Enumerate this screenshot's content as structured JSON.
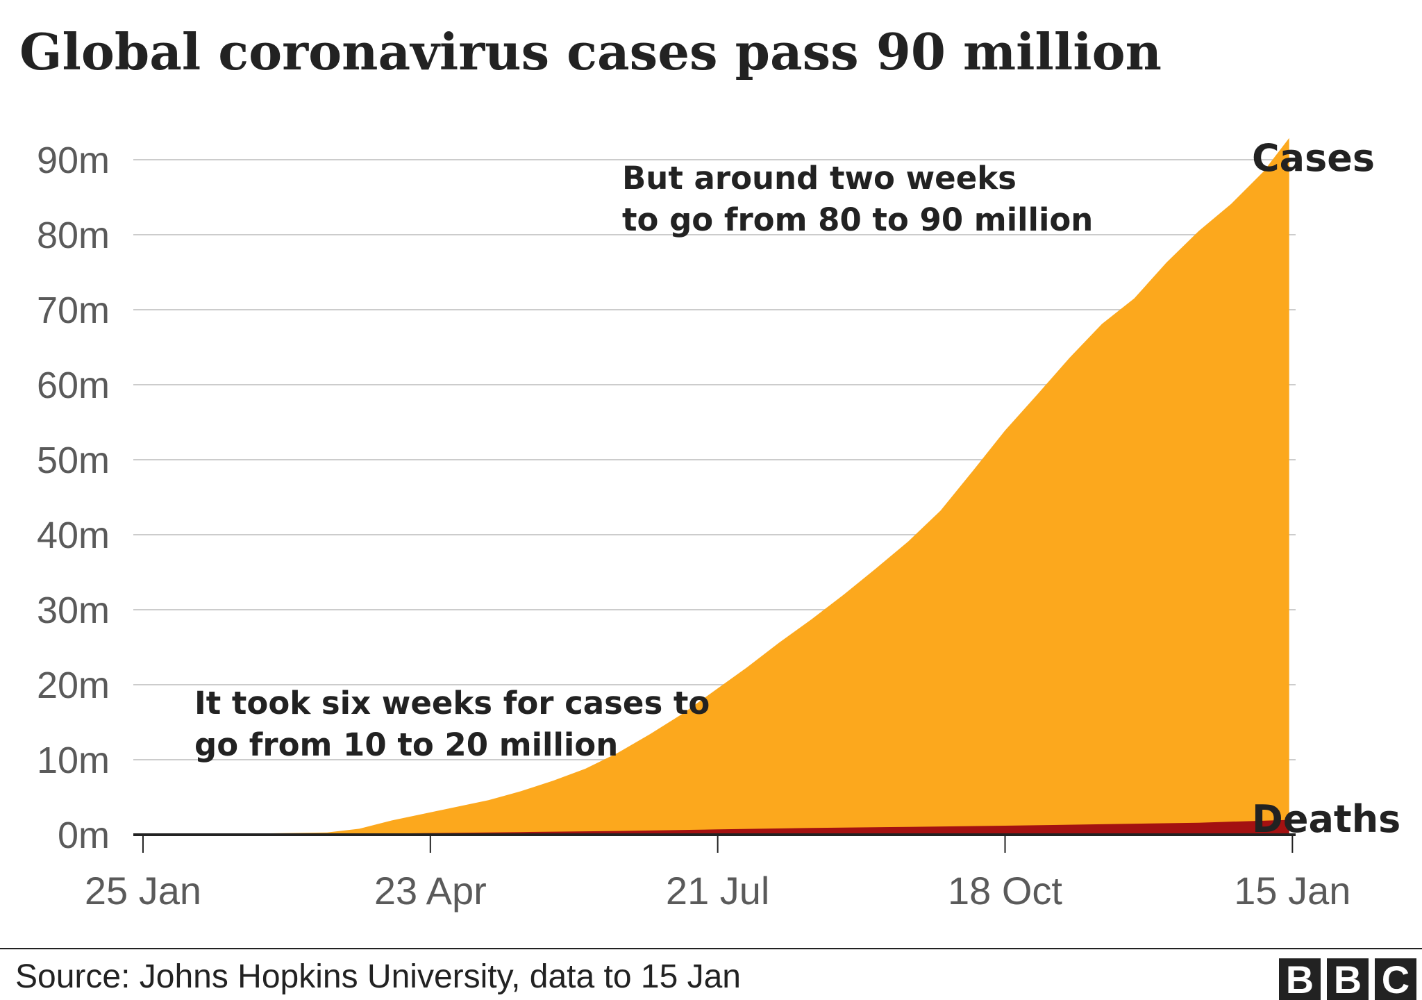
{
  "chart_data": {
    "type": "area",
    "title": "Global coronavirus cases pass 90 million",
    "xlabel": "",
    "ylabel": "",
    "ylim": [
      0,
      90
    ],
    "y_unit": "m",
    "y_ticks": [
      0,
      10,
      20,
      30,
      40,
      50,
      60,
      70,
      80,
      90
    ],
    "y_tick_labels": [
      "0m",
      "10m",
      "20m",
      "30m",
      "40m",
      "50m",
      "60m",
      "70m",
      "80m",
      "90m"
    ],
    "x_domain_days": [
      0,
      360
    ],
    "x_ticks": [
      {
        "day": 3,
        "label": "25 Jan"
      },
      {
        "day": 92,
        "label": "23 Apr"
      },
      {
        "day": 181,
        "label": "21 Jul"
      },
      {
        "day": 270,
        "label": "18 Oct"
      },
      {
        "day": 359,
        "label": "15 Jan"
      }
    ],
    "grid": true,
    "series": [
      {
        "name": "Cases",
        "color": "#fca81d",
        "points": [
          [
            0,
            0.0
          ],
          [
            30,
            0.1
          ],
          [
            60,
            0.3
          ],
          [
            70,
            0.8
          ],
          [
            80,
            1.9
          ],
          [
            90,
            2.8
          ],
          [
            100,
            3.7
          ],
          [
            110,
            4.6
          ],
          [
            120,
            5.8
          ],
          [
            130,
            7.2
          ],
          [
            140,
            8.8
          ],
          [
            150,
            10.9
          ],
          [
            160,
            13.4
          ],
          [
            170,
            16.1
          ],
          [
            180,
            19.2
          ],
          [
            190,
            22.3
          ],
          [
            200,
            25.6
          ],
          [
            210,
            28.7
          ],
          [
            220,
            32.0
          ],
          [
            230,
            35.5
          ],
          [
            240,
            39.1
          ],
          [
            250,
            43.2
          ],
          [
            260,
            48.5
          ],
          [
            270,
            53.9
          ],
          [
            280,
            58.7
          ],
          [
            290,
            63.6
          ],
          [
            300,
            68.1
          ],
          [
            310,
            71.5
          ],
          [
            320,
            76.3
          ],
          [
            330,
            80.5
          ],
          [
            340,
            84.1
          ],
          [
            350,
            88.4
          ],
          [
            358,
            92.9
          ]
        ]
      },
      {
        "name": "Deaths",
        "color": "#a31111",
        "points": [
          [
            0,
            0.0
          ],
          [
            60,
            0.05
          ],
          [
            90,
            0.2
          ],
          [
            120,
            0.35
          ],
          [
            150,
            0.5
          ],
          [
            180,
            0.7
          ],
          [
            210,
            0.9
          ],
          [
            240,
            1.05
          ],
          [
            270,
            1.2
          ],
          [
            300,
            1.4
          ],
          [
            330,
            1.6
          ],
          [
            358,
            1.98
          ]
        ]
      }
    ],
    "annotations": [
      {
        "lines": [
          "But around two weeks",
          "to go from 80 to 90 million"
        ]
      },
      {
        "lines": [
          "It took six weeks for cases to",
          "go from 10 to 20 million"
        ]
      }
    ],
    "legend": "direct labels at line ends"
  },
  "source": "Source: Johns Hopkins University, data to 15 Jan",
  "logo": {
    "letters": [
      "B",
      "B",
      "C"
    ]
  },
  "colors": {
    "cases": "#fca81d",
    "deaths": "#a31111",
    "grid": "#cccccc",
    "axis": "#222222",
    "text": "#222222",
    "tick_text": "#5a5a5a"
  }
}
